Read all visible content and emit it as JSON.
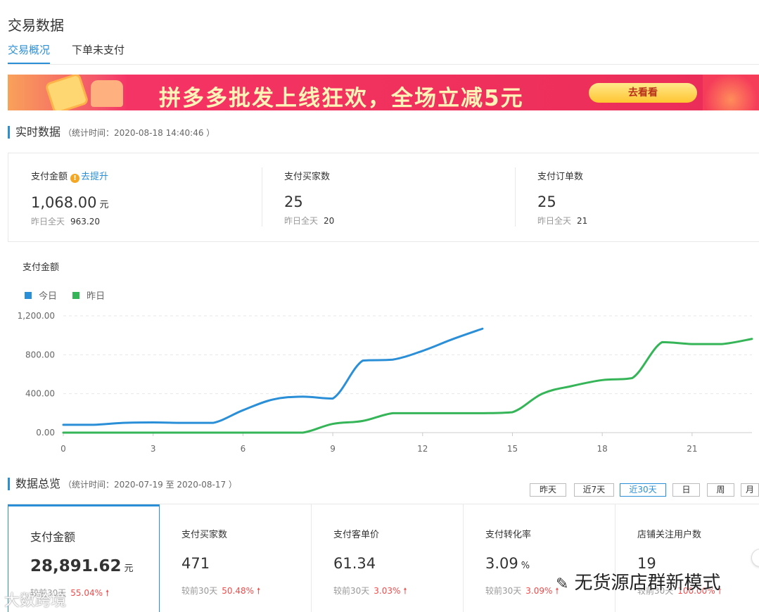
{
  "page": {
    "title": "交易数据"
  },
  "tabs": [
    {
      "label": "交易概况",
      "active": true
    },
    {
      "label": "下单未支付",
      "active": false
    }
  ],
  "banner": {
    "text": "拼多多批发上线狂欢，全场立减5元",
    "button_label": "去看看"
  },
  "realtime": {
    "title": "实时数据",
    "note": "（统计时间：2020-08-18 14:40:46 ）",
    "items": [
      {
        "label": "支付金额",
        "link": "去提升",
        "value": "1,068.00",
        "unit": "元",
        "sub_label": "昨日全天",
        "sub_value": "963.20"
      },
      {
        "label": "支付买家数",
        "value": "25",
        "unit": "",
        "sub_label": "昨日全天",
        "sub_value": "20"
      },
      {
        "label": "支付订单数",
        "value": "25",
        "unit": "",
        "sub_label": "昨日全天",
        "sub_value": "21"
      }
    ]
  },
  "chart_label": "支付金额",
  "legend": [
    {
      "name": "今日",
      "color": "#2b8fd8"
    },
    {
      "name": "昨日",
      "color": "#35b558"
    }
  ],
  "chart_data": {
    "type": "line",
    "xlim": [
      0,
      23
    ],
    "ylim": [
      0,
      1200
    ],
    "x_ticks": [
      "0",
      "3",
      "6",
      "9",
      "12",
      "15",
      "18",
      "21"
    ],
    "y_ticks": [
      "0.00",
      "400.00",
      "800.00",
      "1,200.00"
    ],
    "grid": true,
    "series": [
      {
        "name": "今日",
        "color": "#2b8fd8",
        "x": [
          0,
          1,
          2,
          3,
          4,
          5,
          6,
          7,
          8,
          9,
          10,
          11,
          12,
          13,
          14
        ],
        "values": [
          80,
          80,
          100,
          105,
          100,
          100,
          230,
          340,
          370,
          350,
          740,
          750,
          840,
          960,
          1068
        ]
      },
      {
        "name": "昨日",
        "color": "#35b558",
        "x": [
          0,
          1,
          2,
          3,
          4,
          5,
          6,
          7,
          8,
          9,
          10,
          11,
          12,
          13,
          14,
          15,
          16,
          17,
          18,
          19,
          20,
          21,
          22,
          23
        ],
        "values": [
          0,
          0,
          0,
          0,
          0,
          0,
          0,
          0,
          0,
          90,
          120,
          200,
          200,
          200,
          200,
          210,
          400,
          480,
          540,
          560,
          930,
          910,
          910,
          963.2
        ]
      }
    ]
  },
  "overview": {
    "title": "数据总览",
    "note": "（统计时间：2020-07-19 至 2020-08-17 ）",
    "ranges": [
      {
        "label": "昨天",
        "active": false
      },
      {
        "label": "近7天",
        "active": false
      },
      {
        "label": "近30天",
        "active": true
      },
      {
        "label": "日",
        "active": false
      },
      {
        "label": "周",
        "active": false
      },
      {
        "label": "月",
        "active": false
      }
    ],
    "cards": [
      {
        "label": "支付金额",
        "value": "28,891.62",
        "unit": "元",
        "compare_label": "较前30天",
        "compare_value": "55.04%"
      },
      {
        "label": "支付买家数",
        "value": "471",
        "unit": "",
        "compare_label": "较前30天",
        "compare_value": "50.48%"
      },
      {
        "label": "支付客单价",
        "value": "61.34",
        "unit": "",
        "compare_label": "较前30天",
        "compare_value": "3.03%"
      },
      {
        "label": "支付转化率",
        "value": "3.09",
        "unit": "%",
        "compare_label": "较前30天",
        "compare_value": "3.09%"
      },
      {
        "label": "店铺关注用户数",
        "value": "19",
        "unit": "",
        "compare_label": "较前30天",
        "compare_value": "100.00%"
      }
    ]
  },
  "watermarks": {
    "right": "无货源店群新模式",
    "left": "大数跨境"
  }
}
